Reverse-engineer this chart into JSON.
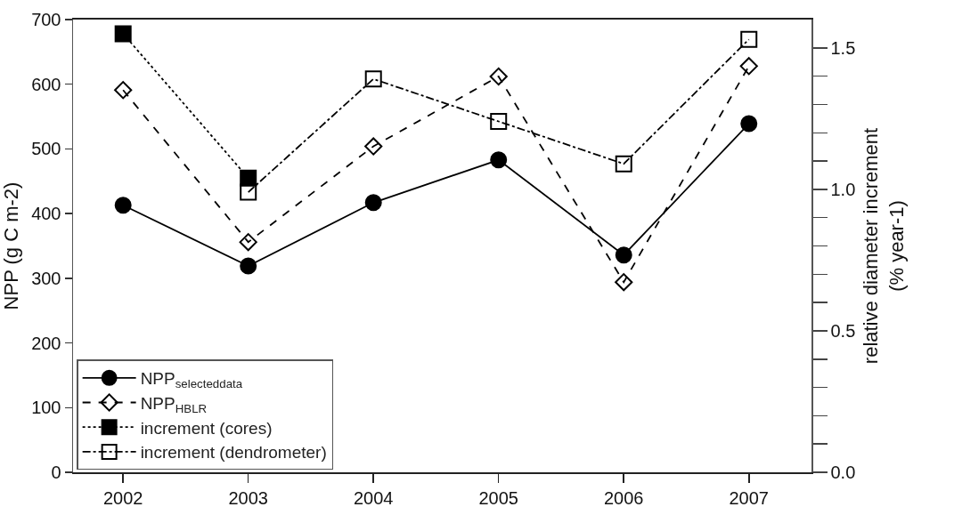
{
  "chart_data": {
    "type": "line",
    "xlabel": null,
    "ylabel": "NPP (g C m-2)",
    "y2label": "relative diameter increment\n(% year-1)",
    "x": [
      2002,
      2003,
      2004,
      2005,
      2006,
      2007
    ],
    "xlim": [
      2001.6,
      2007.5
    ],
    "xticks": [
      2002,
      2003,
      2004,
      2005,
      2006,
      2007
    ],
    "ylim": [
      0,
      700
    ],
    "yticks": [
      0,
      100,
      200,
      300,
      400,
      500,
      600,
      700
    ],
    "y2lim": [
      0,
      1.6
    ],
    "y2ticks": [
      {
        "value": 0,
        "label": "0.0"
      },
      {
        "value": 0.1,
        "label": null
      },
      {
        "value": 0.2,
        "label": null
      },
      {
        "value": 0.3,
        "label": null
      },
      {
        "value": 0.4,
        "label": null
      },
      {
        "value": 0.5,
        "label": "0.5"
      },
      {
        "value": 0.6,
        "label": null
      },
      {
        "value": 0.7,
        "label": null
      },
      {
        "value": 0.8,
        "label": null
      },
      {
        "value": 0.9,
        "label": null
      },
      {
        "value": 1.0,
        "label": "1.0"
      },
      {
        "value": 1.1,
        "label": null
      },
      {
        "value": 1.2,
        "label": null
      },
      {
        "value": 1.3,
        "label": null
      },
      {
        "value": 1.4,
        "label": null
      },
      {
        "value": 1.5,
        "label": "1.5"
      }
    ],
    "grid": false,
    "legend": "bottom left",
    "series": [
      {
        "name": "NPP$_{selecteddata}$",
        "color": "#000000",
        "marker": "circle",
        "line_style": "solid",
        "values": [
          413,
          319,
          417,
          483,
          336,
          539
        ]
      },
      {
        "name": "NPP$_{HBLR}$",
        "color": "#000000",
        "marker": "diamond",
        "line_style": "dashed",
        "values": [
          591,
          356,
          504,
          612,
          294,
          628
        ]
      },
      {
        "name": "increment (cores)",
        "color": "#000000",
        "marker": "square",
        "line_style": "dotted",
        "axis": "y2",
        "values": [
          1.55,
          1.04,
          null,
          null,
          null,
          null
        ]
      },
      {
        "name": "increment (dendrometer)",
        "color": "#000000",
        "marker": "square",
        "line_style": "dashdot",
        "axis": "y2",
        "values": [
          null,
          0.99,
          1.39,
          1.24,
          1.09,
          1.53
        ]
      }
    ]
  }
}
